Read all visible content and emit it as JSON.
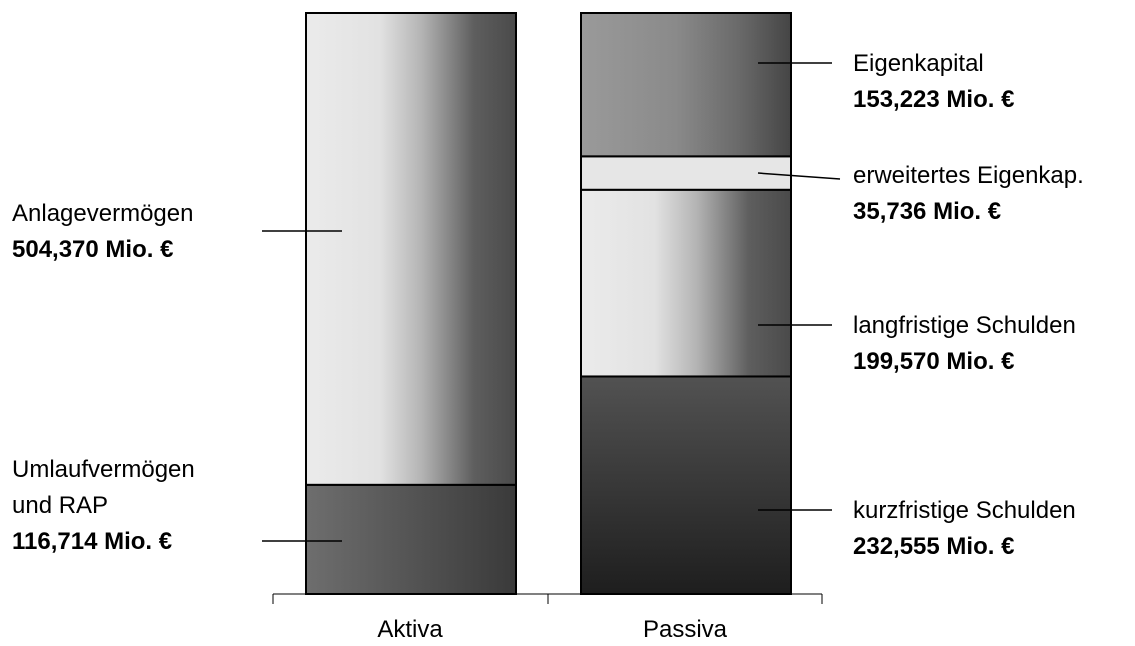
{
  "chart_data": {
    "type": "bar",
    "stacked": true,
    "categories": [
      "Aktiva",
      "Passiva"
    ],
    "unit": "Mio. €",
    "columns": [
      {
        "category": "Aktiva",
        "segments": [
          {
            "name_lines": [
              "Umlaufvermögen",
              "und RAP"
            ],
            "value": 116.714,
            "value_label": "116,714 Mio. €",
            "style": "dark-h"
          },
          {
            "name_lines": [
              "Anlagevermögen"
            ],
            "value": 504.37,
            "value_label": "504,370 Mio. €",
            "style": "light-h"
          }
        ]
      },
      {
        "category": "Passiva",
        "segments": [
          {
            "name_lines": [
              "kurzfristige Schulden"
            ],
            "value": 232.555,
            "value_label": "232,555 Mio. €",
            "style": "dark-v"
          },
          {
            "name_lines": [
              "langfristige Schulden"
            ],
            "value": 199.57,
            "value_label": "199,570 Mio. €",
            "style": "light-h"
          },
          {
            "name_lines": [
              "erweitertes Eigenkap."
            ],
            "value": 35.736,
            "value_label": "35,736 Mio. €",
            "style": "pale"
          },
          {
            "name_lines": [
              "Eigenkapital"
            ],
            "value": 153.223,
            "value_label": "153,223 Mio. €",
            "style": "mid-h"
          }
        ]
      }
    ],
    "colors": {
      "light_gradient": [
        "#ebebeb",
        "#e2e2e2",
        "#b4b4b4",
        "#5e5e5e",
        "#4a4a4a"
      ],
      "dark_gradient": [
        "#6e6e6e",
        "#545454",
        "#3a3a3a"
      ],
      "mid_gradient": [
        "#9a9a9a",
        "#8a8a8a",
        "#6a6a6a",
        "#454545"
      ],
      "dark_vertical": [
        "#525252",
        "#1e1e1e"
      ],
      "pale": "#e6e6e6",
      "outline": "#000000"
    }
  }
}
